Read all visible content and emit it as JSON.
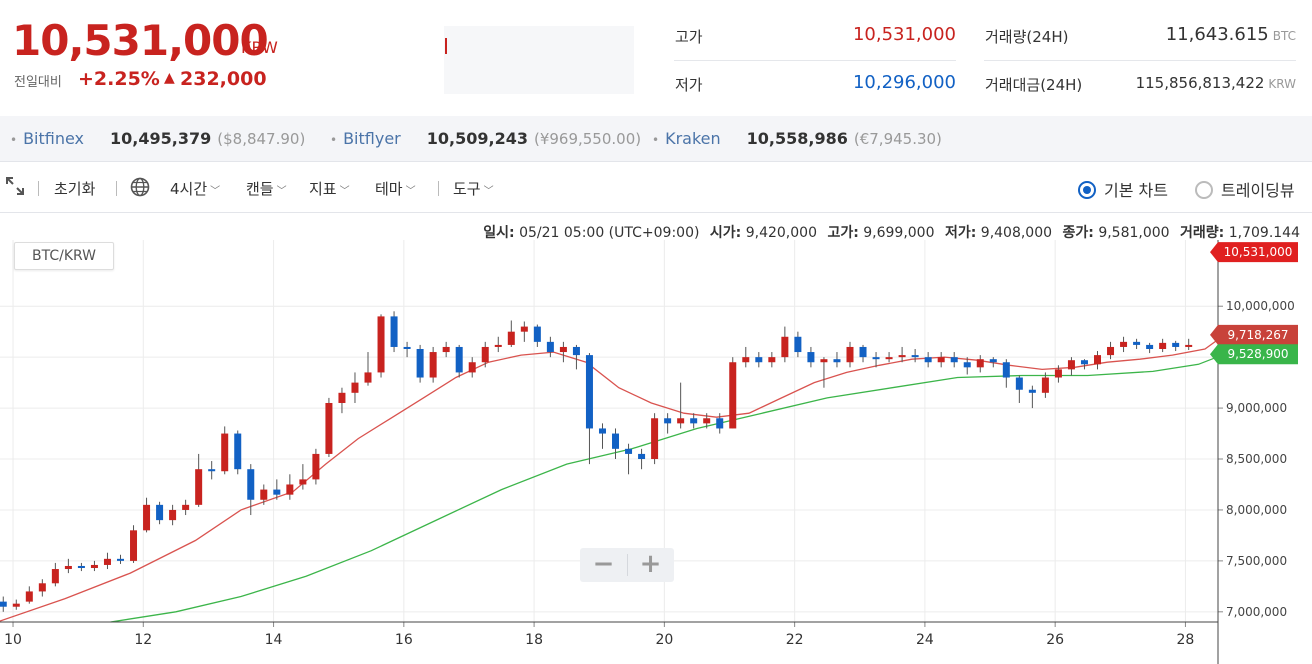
{
  "header": {
    "price": "10,531,000",
    "price_unit": "KRW",
    "change_label": "전일대비",
    "change_pct": "+2.25%",
    "change_arrow": "▲",
    "change_abs": "232,000",
    "high_label": "고가",
    "high_value": "10,531,000",
    "low_label": "저가",
    "low_value": "10,296,000",
    "volume_label": "거래량(24H)",
    "volume_value": "11,643.615",
    "volume_unit": "BTC",
    "turnover_label": "거래대금(24H)",
    "turnover_value": "115,856,813,422",
    "turnover_unit": "KRW"
  },
  "exchanges": [
    {
      "name": "Bitfinex",
      "price": "10,495,379",
      "alt": "($8,847.90)"
    },
    {
      "name": "Bitflyer",
      "price": "10,509,243",
      "alt": "(¥969,550.00)"
    },
    {
      "name": "Kraken",
      "price": "10,558,986",
      "alt": "(€7,945.30)"
    }
  ],
  "toolbar": {
    "reset": "초기화",
    "interval": "4시간",
    "candle": "캔들",
    "indicator": "지표",
    "theme": "테마",
    "tools": "도구",
    "basic_chart": "기본 차트",
    "tradingview": "트레이딩뷰"
  },
  "chart_info": {
    "date_label": "일시:",
    "date_value": "05/21 05:00 (UTC+09:00)",
    "open_label": "시가:",
    "open_value": "9,420,000",
    "high_label": "고가:",
    "high_value": "9,699,000",
    "low_label": "저가:",
    "low_value": "9,408,000",
    "close_label": "종가:",
    "close_value": "9,581,000",
    "volume_label": "거래량:",
    "volume_value": "1,709.144"
  },
  "pair": "BTC/KRW",
  "zoom": {
    "minus": "−",
    "plus": "+"
  },
  "colors": {
    "up": "#c8231f",
    "down": "#1261c4",
    "ma_short": "#d9534f",
    "ma_long": "#3cb54a"
  },
  "chart_data": {
    "type": "candlestick",
    "x_ticks": [
      "10",
      "12",
      "14",
      "16",
      "18",
      "20",
      "22",
      "24",
      "26",
      "28"
    ],
    "x_range": [
      9.8,
      28.5
    ],
    "y_ticks": [
      "10,000,000",
      "9,500,000",
      "9,000,000",
      "8,500,000",
      "8,000,000",
      "7,500,000",
      "7,000,000"
    ],
    "y_range": [
      6900000,
      10650000
    ],
    "price_tags": [
      {
        "label": "10,531,000",
        "value": 10531000,
        "color": "#e02020"
      },
      {
        "label": "9,718,267",
        "value": 9718267,
        "color": "#c8423a"
      },
      {
        "label": "9,528,900",
        "value": 9528900,
        "color": "#39b54a"
      }
    ],
    "candles": [
      [
        9.85,
        7100000,
        7050000,
        7150000,
        7000000
      ],
      [
        10.05,
        7050000,
        7080000,
        7120000,
        7020000
      ],
      [
        10.25,
        7100000,
        7200000,
        7250000,
        7080000
      ],
      [
        10.45,
        7200000,
        7280000,
        7320000,
        7150000
      ],
      [
        10.65,
        7280000,
        7420000,
        7480000,
        7250000
      ],
      [
        10.85,
        7420000,
        7450000,
        7520000,
        7380000
      ],
      [
        11.05,
        7450000,
        7430000,
        7480000,
        7400000
      ],
      [
        11.25,
        7430000,
        7460000,
        7500000,
        7400000
      ],
      [
        11.45,
        7460000,
        7520000,
        7580000,
        7420000
      ],
      [
        11.65,
        7520000,
        7500000,
        7560000,
        7470000
      ],
      [
        11.85,
        7500000,
        7800000,
        7850000,
        7480000
      ],
      [
        12.05,
        7800000,
        8050000,
        8120000,
        7780000
      ],
      [
        12.25,
        8050000,
        7900000,
        8080000,
        7860000
      ],
      [
        12.45,
        7900000,
        8000000,
        8050000,
        7850000
      ],
      [
        12.65,
        8000000,
        8050000,
        8100000,
        7950000
      ],
      [
        12.85,
        8050000,
        8400000,
        8550000,
        8030000
      ],
      [
        13.05,
        8400000,
        8380000,
        8480000,
        8300000
      ],
      [
        13.25,
        8380000,
        8750000,
        8820000,
        8350000
      ],
      [
        13.45,
        8750000,
        8400000,
        8780000,
        8350000
      ],
      [
        13.65,
        8400000,
        8100000,
        8450000,
        7950000
      ],
      [
        13.85,
        8100000,
        8200000,
        8250000,
        8050000
      ],
      [
        14.05,
        8200000,
        8150000,
        8300000,
        8100000
      ],
      [
        14.25,
        8150000,
        8250000,
        8350000,
        8100000
      ],
      [
        14.45,
        8250000,
        8300000,
        8450000,
        8200000
      ],
      [
        14.65,
        8300000,
        8550000,
        8600000,
        8250000
      ],
      [
        14.85,
        8550000,
        9050000,
        9100000,
        8520000
      ],
      [
        15.05,
        9050000,
        9150000,
        9200000,
        8950000
      ],
      [
        15.25,
        9150000,
        9250000,
        9350000,
        9050000
      ],
      [
        15.45,
        9250000,
        9350000,
        9550000,
        9220000
      ],
      [
        15.65,
        9350000,
        9900000,
        9920000,
        9300000
      ],
      [
        15.85,
        9900000,
        9600000,
        9950000,
        9550000
      ],
      [
        16.05,
        9600000,
        9580000,
        9650000,
        9500000
      ],
      [
        16.25,
        9580000,
        9300000,
        9620000,
        9250000
      ],
      [
        16.45,
        9300000,
        9550000,
        9600000,
        9250000
      ],
      [
        16.65,
        9550000,
        9600000,
        9650000,
        9500000
      ],
      [
        16.85,
        9600000,
        9350000,
        9620000,
        9300000
      ],
      [
        17.05,
        9350000,
        9450000,
        9500000,
        9300000
      ],
      [
        17.25,
        9450000,
        9600000,
        9650000,
        9400000
      ],
      [
        17.45,
        9600000,
        9620000,
        9700000,
        9550000
      ],
      [
        17.65,
        9620000,
        9750000,
        9860000,
        9600000
      ],
      [
        17.85,
        9750000,
        9800000,
        9850000,
        9650000
      ],
      [
        18.05,
        9800000,
        9650000,
        9820000,
        9600000
      ],
      [
        18.25,
        9650000,
        9550000,
        9700000,
        9500000
      ],
      [
        18.45,
        9550000,
        9600000,
        9650000,
        9450000
      ],
      [
        18.65,
        9600000,
        9520000,
        9620000,
        9380000
      ],
      [
        18.85,
        9520000,
        8800000,
        9540000,
        8450000
      ],
      [
        19.05,
        8800000,
        8750000,
        8850000,
        8600000
      ],
      [
        19.25,
        8750000,
        8600000,
        8800000,
        8500000
      ],
      [
        19.45,
        8600000,
        8550000,
        8650000,
        8350000
      ],
      [
        19.65,
        8550000,
        8500000,
        8600000,
        8400000
      ],
      [
        19.85,
        8500000,
        8900000,
        8950000,
        8450000
      ],
      [
        20.05,
        8900000,
        8850000,
        8950000,
        8750000
      ],
      [
        20.25,
        8850000,
        8900000,
        9250000,
        8800000
      ],
      [
        20.45,
        8900000,
        8850000,
        8950000,
        8800000
      ],
      [
        20.65,
        8850000,
        8900000,
        8950000,
        8800000
      ],
      [
        20.85,
        8900000,
        8800000,
        8950000,
        8750000
      ],
      [
        21.05,
        8800000,
        9450000,
        9500000,
        8800000
      ],
      [
        21.25,
        9450000,
        9500000,
        9600000,
        9400000
      ],
      [
        21.45,
        9500000,
        9450000,
        9550000,
        9400000
      ],
      [
        21.65,
        9450000,
        9500000,
        9550000,
        9400000
      ],
      [
        21.85,
        9500000,
        9700000,
        9800000,
        9450000
      ],
      [
        22.05,
        9700000,
        9550000,
        9750000,
        9500000
      ],
      [
        22.25,
        9550000,
        9450000,
        9600000,
        9400000
      ],
      [
        22.45,
        9450000,
        9480000,
        9500000,
        9200000
      ],
      [
        22.65,
        9480000,
        9450000,
        9550000,
        9400000
      ],
      [
        22.85,
        9450000,
        9600000,
        9650000,
        9400000
      ],
      [
        23.05,
        9600000,
        9500000,
        9620000,
        9450000
      ],
      [
        23.25,
        9500000,
        9480000,
        9550000,
        9400000
      ],
      [
        23.45,
        9480000,
        9500000,
        9550000,
        9450000
      ],
      [
        23.65,
        9500000,
        9520000,
        9600000,
        9450000
      ],
      [
        23.85,
        9520000,
        9500000,
        9580000,
        9450000
      ],
      [
        24.05,
        9500000,
        9450000,
        9550000,
        9400000
      ],
      [
        24.25,
        9450000,
        9500000,
        9550000,
        9400000
      ],
      [
        24.45,
        9500000,
        9450000,
        9550000,
        9400000
      ],
      [
        24.65,
        9450000,
        9400000,
        9500000,
        9330000
      ],
      [
        24.85,
        9400000,
        9480000,
        9520000,
        9350000
      ],
      [
        25.05,
        9480000,
        9450000,
        9500000,
        9400000
      ],
      [
        25.25,
        9450000,
        9300000,
        9480000,
        9200000
      ],
      [
        25.45,
        9300000,
        9180000,
        9320000,
        9050000
      ],
      [
        25.65,
        9180000,
        9150000,
        9220000,
        9000000
      ],
      [
        25.85,
        9150000,
        9300000,
        9350000,
        9100000
      ],
      [
        26.05,
        9300000,
        9380000,
        9420000,
        9250000
      ],
      [
        26.25,
        9380000,
        9470000,
        9500000,
        9320000
      ],
      [
        26.45,
        9470000,
        9430000,
        9480000,
        9380000
      ],
      [
        26.65,
        9430000,
        9520000,
        9560000,
        9380000
      ],
      [
        26.85,
        9520000,
        9600000,
        9650000,
        9480000
      ],
      [
        27.05,
        9600000,
        9650000,
        9700000,
        9550000
      ],
      [
        27.25,
        9650000,
        9620000,
        9680000,
        9580000
      ],
      [
        27.45,
        9620000,
        9580000,
        9640000,
        9540000
      ],
      [
        27.65,
        9580000,
        9640000,
        9680000,
        9550000
      ],
      [
        27.85,
        9640000,
        9600000,
        9660000,
        9560000
      ],
      [
        28.05,
        9600000,
        9620000,
        9680000,
        9570000
      ]
    ],
    "ma_short": [
      [
        9.8,
        6910000
      ],
      [
        10.8,
        7130000
      ],
      [
        11.8,
        7380000
      ],
      [
        12.8,
        7700000
      ],
      [
        13.5,
        8000000
      ],
      [
        14.3,
        8180000
      ],
      [
        14.8,
        8450000
      ],
      [
        15.3,
        8700000
      ],
      [
        15.8,
        8900000
      ],
      [
        16.3,
        9100000
      ],
      [
        16.8,
        9300000
      ],
      [
        17.3,
        9450000
      ],
      [
        17.8,
        9520000
      ],
      [
        18.3,
        9550000
      ],
      [
        18.8,
        9450000
      ],
      [
        19.3,
        9200000
      ],
      [
        19.8,
        9050000
      ],
      [
        20.3,
        8950000
      ],
      [
        20.8,
        8910000
      ],
      [
        21.3,
        8950000
      ],
      [
        21.8,
        9100000
      ],
      [
        22.3,
        9250000
      ],
      [
        22.8,
        9350000
      ],
      [
        23.3,
        9420000
      ],
      [
        23.8,
        9480000
      ],
      [
        24.3,
        9500000
      ],
      [
        24.8,
        9470000
      ],
      [
        25.3,
        9420000
      ],
      [
        25.8,
        9380000
      ],
      [
        26.3,
        9400000
      ],
      [
        26.8,
        9450000
      ],
      [
        27.3,
        9480000
      ],
      [
        27.8,
        9520000
      ],
      [
        28.3,
        9580000
      ],
      [
        28.6,
        9718267
      ]
    ],
    "ma_long": [
      [
        11.5,
        6900000
      ],
      [
        12.5,
        7000000
      ],
      [
        13.5,
        7150000
      ],
      [
        14.5,
        7350000
      ],
      [
        15.5,
        7600000
      ],
      [
        16.5,
        7900000
      ],
      [
        17.5,
        8200000
      ],
      [
        18.5,
        8450000
      ],
      [
        19.5,
        8600000
      ],
      [
        20.5,
        8800000
      ],
      [
        21.5,
        8950000
      ],
      [
        22.5,
        9100000
      ],
      [
        23.5,
        9200000
      ],
      [
        24.5,
        9300000
      ],
      [
        25.5,
        9320000
      ],
      [
        26.5,
        9320000
      ],
      [
        27.5,
        9360000
      ],
      [
        28.2,
        9430000
      ],
      [
        28.6,
        9528900
      ]
    ]
  }
}
